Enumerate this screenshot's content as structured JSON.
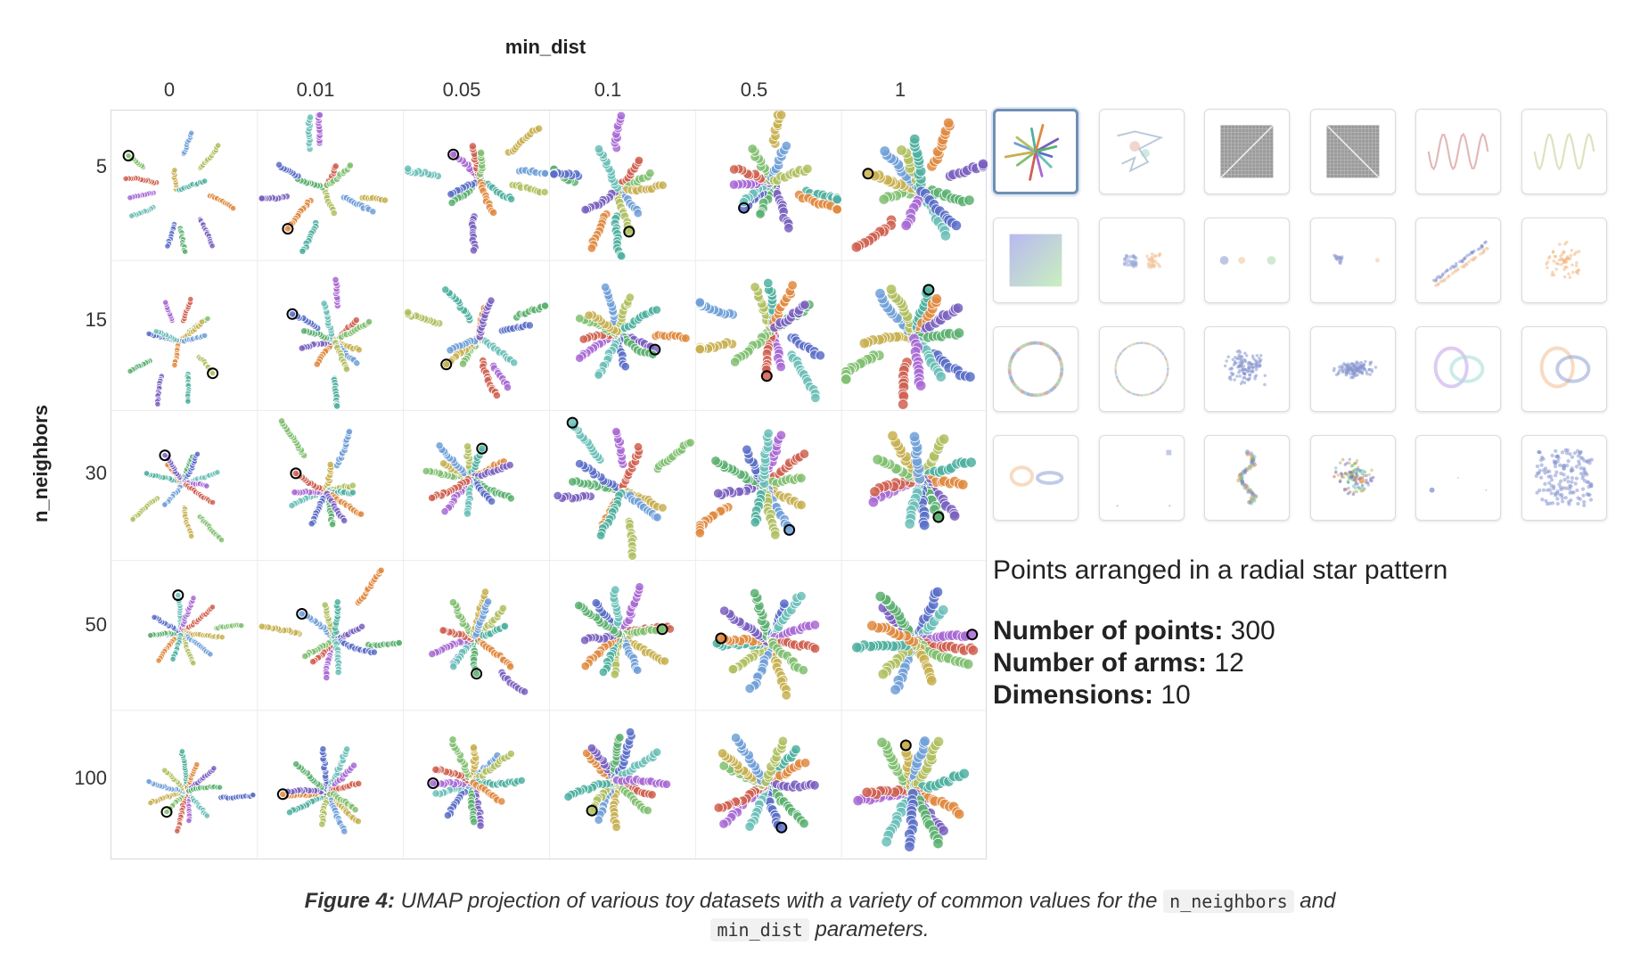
{
  "grid": {
    "title": "min_dist",
    "col_labels": [
      "0",
      "0.01",
      "0.05",
      "0.1",
      "0.5",
      "1"
    ],
    "y_title": "n_neighbors",
    "row_labels": [
      "5",
      "15",
      "30",
      "50",
      "100"
    ]
  },
  "dataset": {
    "description": "Points arranged in a radial star pattern",
    "points_label": "Number of points:",
    "points_value": "300",
    "arms_label": "Number of arms:",
    "arms_value": "12",
    "dims_label": "Dimensions:",
    "dims_value": "10"
  },
  "thumbnails": {
    "selected_index": 0,
    "items": [
      "radial-star",
      "random-walk-lines",
      "grid-diagonal-a",
      "grid-diagonal-b",
      "sine-wave-red",
      "sine-wave-green",
      "color-gradient-square",
      "two-clusters",
      "three-clusters-small",
      "two-clusters-far",
      "parallel-lines",
      "single-blob",
      "circle-gradient",
      "circle-thin",
      "gaussian-blob",
      "flat-ellipse",
      "linked-rings-3d",
      "linked-rings",
      "two-rings-small",
      "sparse-points",
      "trefoil-knot",
      "dense-multicolor",
      "tiny-dots",
      "uniform-square"
    ]
  },
  "caption": {
    "lead": "Figure 4:",
    "text_1": "UMAP projection of various toy datasets with a variety of common values for the",
    "code_1": "n_neighbors",
    "text_2": "and",
    "code_2": "min_dist",
    "text_3": "parameters."
  },
  "colors": {
    "arm_palette": [
      "#5a6fc8",
      "#6bc0b8",
      "#a868d4",
      "#d06050",
      "#80c070",
      "#c8b050",
      "#70a0d8",
      "#b0c060",
      "#4fb0a0",
      "#e08a40",
      "#7a60c0",
      "#5cb070"
    ],
    "selected_border": "#6f8fb5",
    "grid_border": "#d9d9d9"
  }
}
